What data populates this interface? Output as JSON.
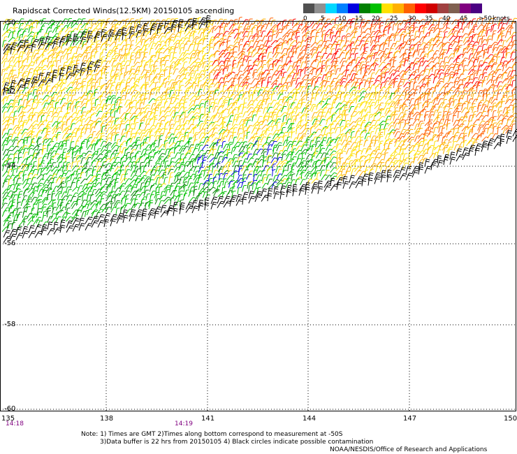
{
  "title": "Rapidscat Corrected Winds(12.5KM) 20150105 ascending",
  "legend": {
    "unit": "knots",
    "labels": [
      "0",
      "5",
      "10",
      "15",
      "20",
      "25",
      "30",
      "35",
      "40",
      "45",
      ">50"
    ],
    "colors": [
      "#505050",
      "#909090",
      "#00d8ff",
      "#0080ff",
      "#0000e0",
      "#008000",
      "#00c000",
      "#ffe000",
      "#ffb000",
      "#ff6000",
      "#ff0000",
      "#d00000",
      "#a04040",
      "#806050",
      "#800080",
      "#4b0082"
    ]
  },
  "map": {
    "lat_labels": [
      "-50",
      "-52",
      "-54",
      "-56",
      "-58",
      "-60"
    ],
    "lon_labels": [
      "135",
      "138",
      "141",
      "144",
      "147",
      "150"
    ],
    "time_labels": [
      "14:18",
      "14:19"
    ]
  },
  "notes": {
    "line1": "Note: 1) Times are GMT 2)Times along bottom correspond to measurement at -50S",
    "line2": "3)Data buffer is 22 hrs from 20150105 4) Black circles indicate possible contamination",
    "credit": "NOAA/NESDIS/Office of Research and Applications"
  }
}
